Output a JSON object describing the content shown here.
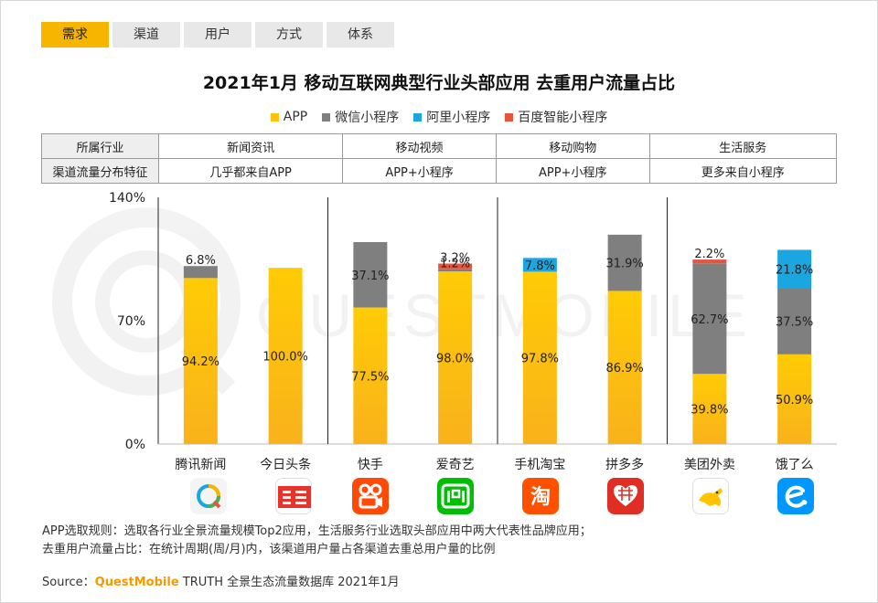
{
  "tabs": [
    {
      "label": "需求",
      "active": true
    },
    {
      "label": "渠道",
      "active": false
    },
    {
      "label": "用户",
      "active": false
    },
    {
      "label": "方式",
      "active": false
    },
    {
      "label": "体系",
      "active": false
    }
  ],
  "table": {
    "rows": [
      {
        "head": "所属行业",
        "cells": [
          "新闻资讯",
          "移动视频",
          "移动购物",
          "生活服务"
        ]
      },
      {
        "head": "渠道流量分布特征",
        "cells": [
          "几乎都来自APP",
          "APP+小程序",
          "APP+小程序",
          "更多来自小程序"
        ]
      }
    ]
  },
  "colors": {
    "app": "#ffc20e",
    "wechat": "#7f7f7f",
    "alipay": "#1ba6e0",
    "baidu": "#e8553e",
    "accent": "#f7b500",
    "brand": "#f29b00"
  },
  "icons": [
    "tencent-news-icon",
    "toutiao-icon",
    "kuaishou-icon",
    "iqiyi-icon",
    "taobao-icon",
    "pinduoduo-icon",
    "meituan-waimai-icon",
    "eleme-icon"
  ],
  "footnote": {
    "line1": "APP选取规则：选取各行业全景流量规模Top2应用，生活服务行业选取头部应用中两大代表性品牌应用；",
    "line2": "去重用户流量占比：在统计周期(周/月)内，该渠道用户量占各渠道去重总用户量的比例"
  },
  "source": {
    "prefix": "Source：",
    "brand": "QuestMobile",
    "suffix": " TRUTH 全景生态流量数据库 2021年1月"
  },
  "chart_data": {
    "type": "bar",
    "stacked": true,
    "title": "2021年1月 移动互联网典型行业头部应用 去重用户流量占比",
    "categories": [
      "腾讯新闻",
      "今日头条",
      "快手",
      "爱奇艺",
      "手机淘宝",
      "拼多多",
      "美团外卖",
      "饿了么"
    ],
    "series": [
      {
        "name": "APP",
        "values": [
          94.2,
          100.0,
          77.5,
          98.0,
          97.8,
          86.9,
          39.8,
          50.9
        ],
        "labels": [
          "94.2%",
          "100.0%",
          "77.5%",
          "98.0%",
          "97.8%",
          "86.9%",
          "39.8%",
          "50.9%"
        ]
      },
      {
        "name": "微信小程序",
        "values": [
          6.8,
          0,
          37.1,
          1.2,
          0,
          31.9,
          62.7,
          37.5
        ],
        "labels": [
          "6.8%",
          "",
          "37.1%",
          "1.2%",
          "",
          "31.9%",
          "62.7%",
          "37.5%"
        ]
      },
      {
        "name": "阿里小程序",
        "values": [
          0,
          0,
          0,
          0,
          7.8,
          0,
          0,
          21.8
        ],
        "labels": [
          "",
          "",
          "",
          "",
          "7.8%",
          "",
          "",
          "21.8%"
        ]
      },
      {
        "name": "百度智能小程序",
        "values": [
          0,
          0,
          0,
          3.2,
          0,
          0,
          2.2,
          0
        ],
        "labels": [
          "",
          "",
          "",
          "3.2%",
          "",
          "",
          "2.2%",
          ""
        ]
      }
    ],
    "ylim": [
      0,
      140
    ],
    "yticks": [
      "0%",
      "70%",
      "140%"
    ],
    "ytick_values": [
      0,
      70,
      140
    ],
    "legend": "top-center",
    "grid": false
  }
}
